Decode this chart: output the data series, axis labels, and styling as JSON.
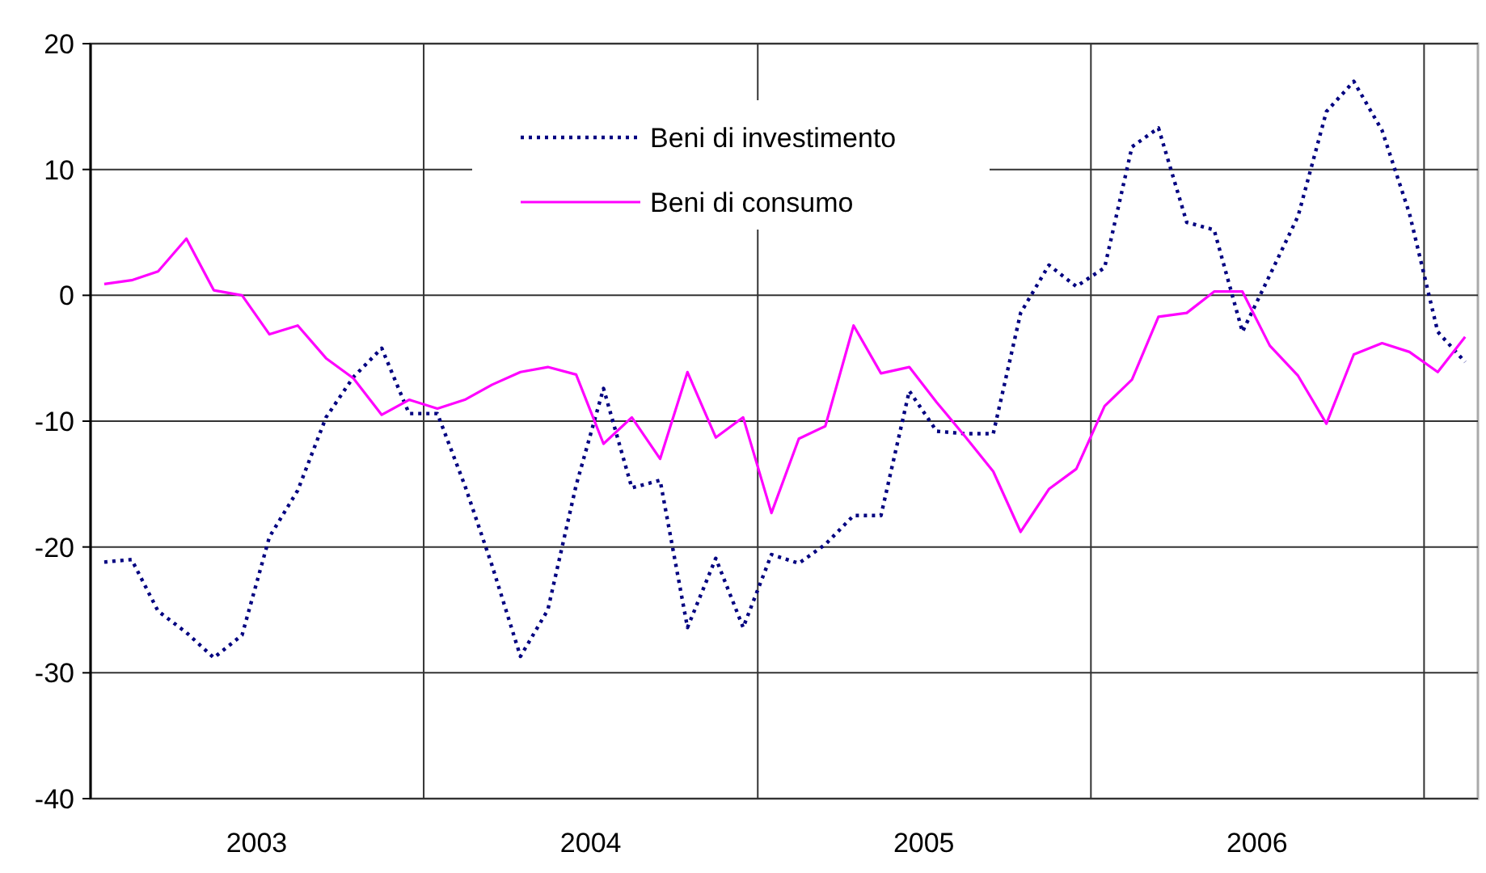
{
  "chart_data": {
    "type": "line",
    "x": [
      "2003-01-16",
      "2003-02-15",
      "2003-03-16",
      "2003-04-16",
      "2003-05-16",
      "2003-06-16",
      "2003-07-16",
      "2003-08-16",
      "2003-09-16",
      "2003-10-16",
      "2003-11-16",
      "2003-12-16",
      "2004-01-16",
      "2004-02-15",
      "2004-03-16",
      "2004-04-16",
      "2004-05-16",
      "2004-06-16",
      "2004-07-16",
      "2004-08-16",
      "2004-09-16",
      "2004-10-16",
      "2004-11-16",
      "2004-12-16",
      "2005-01-16",
      "2005-02-15",
      "2005-03-16",
      "2005-04-16",
      "2005-05-16",
      "2005-06-16",
      "2005-07-16",
      "2005-08-16",
      "2005-09-16",
      "2005-10-16",
      "2005-11-16",
      "2005-12-16",
      "2006-01-16",
      "2006-02-15",
      "2006-03-16",
      "2006-04-16",
      "2006-05-16",
      "2006-06-16",
      "2006-07-16",
      "2006-08-16",
      "2006-09-16",
      "2006-10-16",
      "2006-11-16",
      "2006-12-16",
      "2007-01-16",
      "2007-02-15"
    ],
    "series": [
      {
        "name": "Beni di investimento",
        "color": "#000080",
        "line_style": "dotted",
        "values": [
          -21.2,
          -21.0,
          -25.1,
          -26.8,
          -28.8,
          -27.0,
          -19.2,
          -15.5,
          -9.7,
          -6.5,
          -4.2,
          -9.4,
          -9.4,
          -15.1,
          -21.5,
          -28.7,
          -25.0,
          -15.1,
          -7.4,
          -15.3,
          -14.7,
          -26.4,
          -20.9,
          -26.4,
          -20.6,
          -21.3,
          -19.8,
          -17.5,
          -17.5,
          -7.6,
          -10.8,
          -11.0,
          -11.0,
          -1.4,
          2.4,
          0.7,
          2.2,
          11.8,
          13.3,
          5.8,
          5.2,
          -2.9,
          1.6,
          6.3,
          14.6,
          17.0,
          13.1,
          6.5,
          -2.9,
          -5.3
        ]
      },
      {
        "name": "Beni di consumo",
        "color": "#ff00ff",
        "line_style": "solid",
        "values": [
          0.9,
          1.2,
          1.9,
          4.5,
          0.4,
          0,
          -3.1,
          -2.4,
          -5.0,
          -6.6,
          -9.5,
          -8.3,
          -9.0,
          -8.3,
          -7.1,
          -6.1,
          -5.7,
          -6.3,
          -11.8,
          -9.7,
          -13.0,
          -6.1,
          -11.3,
          -9.7,
          -17.3,
          -11.4,
          -10.4,
          -2.4,
          -6.2,
          -5.7,
          -8.5,
          -11.2,
          -14.0,
          -18.8,
          -15.4,
          -13.8,
          -8.8,
          -6.7,
          -1.7,
          -1.4,
          0.3,
          0.3,
          -4.0,
          -6.4,
          -10.2,
          -4.7,
          -3.8,
          -4.5,
          -6.1,
          -3.3
        ]
      }
    ],
    "xlim": [
      "2003-01-01",
      "2007-03-01"
    ],
    "xticks": [
      {
        "value": "2003-07-02",
        "label": "2003"
      },
      {
        "value": "2004-01-01",
        "label": null
      },
      {
        "value": "2004-07-02",
        "label": "2004"
      },
      {
        "value": "2005-01-01",
        "label": null
      },
      {
        "value": "2005-07-02",
        "label": "2005"
      },
      {
        "value": "2006-01-01",
        "label": null
      },
      {
        "value": "2006-07-02",
        "label": "2006"
      },
      {
        "value": "2007-01-01",
        "label": null
      }
    ],
    "ylim": [
      -40,
      20
    ],
    "yticks": [
      -40,
      -30,
      -20,
      -10,
      0,
      10,
      20
    ],
    "grid": true,
    "legend": "top",
    "marker": "none"
  }
}
